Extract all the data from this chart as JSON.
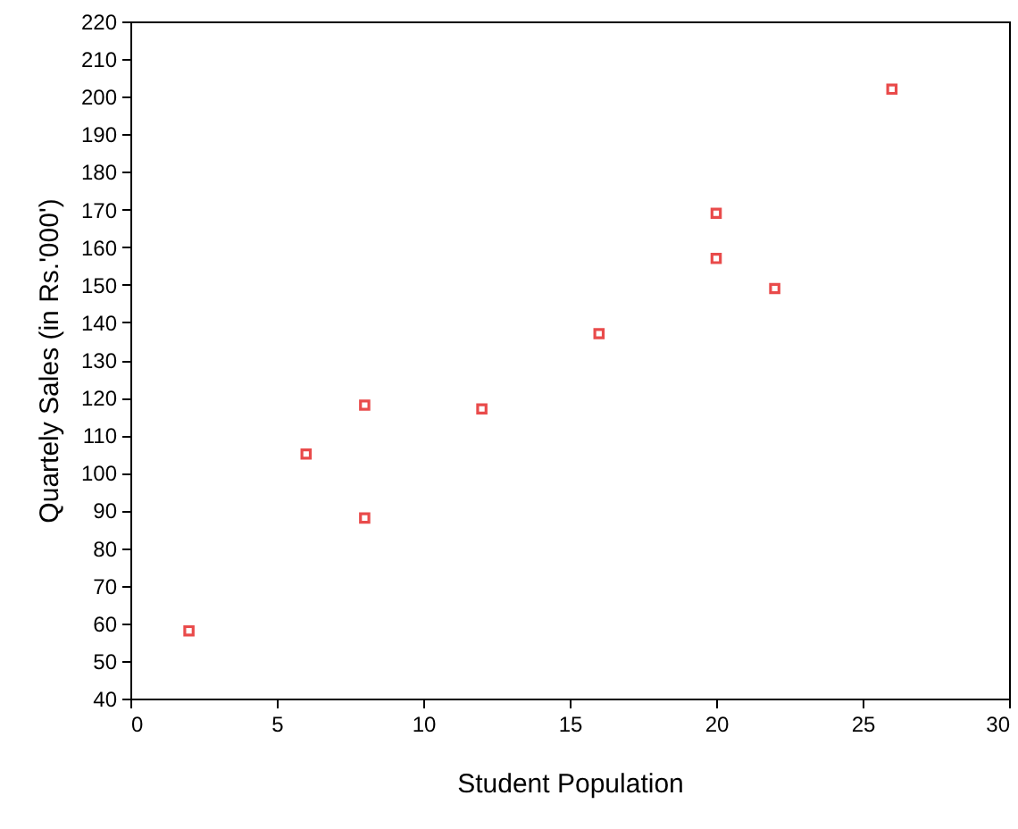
{
  "chart_data": {
    "type": "scatter",
    "xlabel": "Student Population",
    "ylabel": "Quartely Sales (in Rs.'000')",
    "x": [
      2,
      6,
      8,
      8,
      12,
      16,
      20,
      20,
      22,
      26
    ],
    "series": [
      {
        "color": "#e00000",
        "values": [
          58,
          105,
          88,
          118,
          117,
          137,
          157,
          169,
          149,
          202
        ]
      }
    ],
    "xlim": [
      0,
      30
    ],
    "xticks": [
      0,
      5,
      10,
      15,
      20,
      25,
      30
    ],
    "ylim": [
      40,
      220
    ],
    "yticks": [
      40,
      50,
      60,
      70,
      80,
      90,
      100,
      110,
      120,
      130,
      140,
      150,
      160,
      170,
      180,
      190,
      200,
      210,
      220
    ],
    "marker": "square",
    "grid": false
  }
}
